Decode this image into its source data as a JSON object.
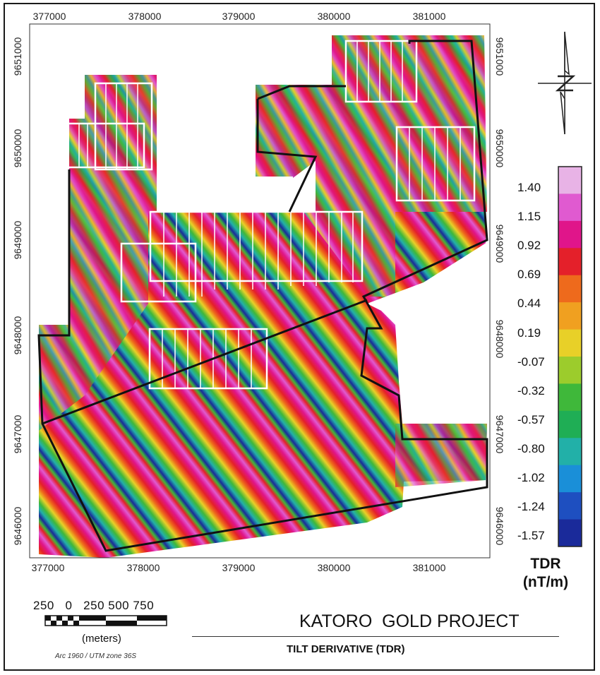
{
  "map": {
    "x_ticks": [
      "377000",
      "378000",
      "379000",
      "380000",
      "381000"
    ],
    "y_ticks_left": [
      "9651000",
      "9650000",
      "9649000",
      "9648000",
      "9647000",
      "9646000"
    ],
    "y_ticks_right": [
      "9651000",
      "9650000",
      "9649000",
      "9648000",
      "9647000",
      "9646000"
    ],
    "north_arrow_icon": "north-arrow-icon"
  },
  "legend": {
    "values": [
      "1.40",
      "1.15",
      "0.92",
      "0.69",
      "0.44",
      "0.19",
      "-0.07",
      "-0.32",
      "-0.57",
      "-0.80",
      "-1.02",
      "-1.24",
      "-1.57"
    ],
    "title_line1": "TDR",
    "title_line2": "(nT/m)",
    "colors": [
      "#e8b3e6",
      "#e05ad0",
      "#e0158a",
      "#e4202a",
      "#ee6a1c",
      "#f0a020",
      "#e8d028",
      "#9ccc2c",
      "#3fb83a",
      "#1fae55",
      "#22b0a8",
      "#1a8fd8",
      "#1e4fc0",
      "#1a2a9a"
    ]
  },
  "scale_bar": {
    "labels": "250   0   250 500 750",
    "units": "(meters)",
    "projection": "Arc 1960 / UTM zone 36S"
  },
  "titles": {
    "project": "KATORO  GOLD PROJECT",
    "subtitle": "TILT DERIVATIVE (TDR)"
  }
}
